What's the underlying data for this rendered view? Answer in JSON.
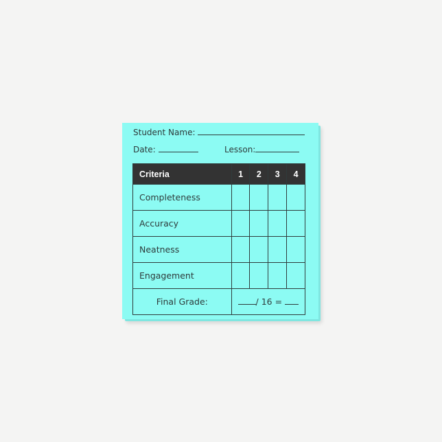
{
  "form": {
    "student_name_label": "Student Name:",
    "date_label": "Date:",
    "lesson_label": "Lesson:",
    "table": {
      "header": {
        "criteria": "Criteria",
        "scores": [
          "1",
          "2",
          "3",
          "4"
        ]
      },
      "rows": [
        "Completeness",
        "Accuracy",
        "Neatness",
        "Engagement"
      ],
      "final_label": "Final Grade:",
      "final_formula": "/ 16 ="
    }
  },
  "colors": {
    "note": "#8cfbf3",
    "header": "#333333"
  }
}
